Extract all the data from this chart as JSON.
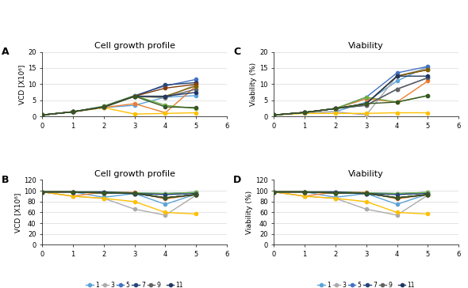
{
  "x": [
    0,
    1,
    2,
    3,
    4,
    5
  ],
  "subplot_A": {
    "title": "Cell growth profile",
    "ylabel": "VCD [X10⁶]",
    "ylim": [
      0,
      20
    ],
    "yticks": [
      0,
      5,
      10,
      15,
      20
    ],
    "series": {
      "1": [
        0.5,
        1.5,
        2.8,
        3.5,
        6.0,
        6.5
      ],
      "2": [
        0.5,
        1.5,
        2.8,
        4.0,
        1.2,
        9.5
      ],
      "3": [
        0.5,
        1.5,
        2.8,
        6.2,
        5.8,
        10.0
      ],
      "4": [
        0.5,
        1.5,
        2.8,
        0.8,
        1.0,
        1.2
      ],
      "5": [
        0.5,
        1.5,
        3.2,
        6.5,
        9.5,
        11.5
      ],
      "6": [
        0.5,
        1.5,
        3.2,
        6.5,
        3.5,
        2.5
      ],
      "7": [
        0.5,
        1.5,
        3.0,
        6.3,
        9.8,
        10.5
      ],
      "8": [
        0.5,
        1.5,
        3.0,
        6.3,
        8.8,
        10.0
      ],
      "9": [
        0.5,
        1.5,
        3.0,
        6.3,
        6.0,
        8.5
      ],
      "10": [
        0.5,
        1.5,
        3.0,
        6.3,
        6.3,
        9.5
      ],
      "11": [
        0.5,
        1.5,
        3.0,
        6.3,
        6.3,
        7.5
      ],
      "12": [
        0.5,
        1.5,
        3.0,
        6.3,
        3.0,
        2.8
      ]
    }
  },
  "subplot_B": {
    "title": "Cell growth profile",
    "ylabel": "VCD [X10⁶]",
    "ylim": [
      0,
      120
    ],
    "yticks": [
      0,
      20,
      40,
      60,
      80,
      100,
      120
    ],
    "series": {
      "1": [
        98,
        98,
        88,
        95,
        75,
        94
      ],
      "2": [
        98,
        90,
        98,
        97,
        85,
        93
      ],
      "3": [
        98,
        90,
        86,
        66,
        55,
        92
      ],
      "4": [
        98,
        90,
        86,
        80,
        60,
        57
      ],
      "5": [
        98,
        98,
        98,
        96,
        95,
        97
      ],
      "6": [
        98,
        98,
        98,
        96,
        95,
        97
      ],
      "7": [
        98,
        98,
        98,
        95,
        93,
        95
      ],
      "8": [
        98,
        98,
        96,
        95,
        87,
        93
      ],
      "9": [
        98,
        98,
        96,
        95,
        87,
        93
      ],
      "10": [
        98,
        98,
        96,
        96,
        87,
        93
      ],
      "11": [
        98,
        98,
        96,
        95,
        87,
        93
      ],
      "12": [
        98,
        98,
        96,
        96,
        87,
        93
      ]
    }
  },
  "subplot_C": {
    "title": "Viability",
    "ylabel": "Viability (%)",
    "ylim": [
      0,
      20
    ],
    "yticks": [
      0,
      5,
      10,
      15,
      20
    ],
    "series": {
      "1": [
        0.5,
        1.3,
        1.5,
        4.5,
        11.0,
        15.5
      ],
      "2": [
        0.5,
        1.3,
        2.5,
        5.5,
        4.5,
        11.0
      ],
      "3": [
        0.5,
        1.3,
        1.5,
        0.5,
        12.5,
        15.0
      ],
      "4": [
        0.5,
        1.0,
        1.0,
        1.0,
        1.2,
        1.2
      ],
      "5": [
        0.5,
        1.3,
        2.5,
        6.0,
        13.5,
        15.5
      ],
      "6": [
        0.5,
        1.3,
        2.5,
        6.0,
        4.5,
        6.5
      ],
      "7": [
        0.5,
        1.3,
        2.5,
        3.5,
        8.5,
        12.0
      ],
      "8": [
        0.5,
        1.3,
        2.5,
        4.0,
        12.5,
        14.5
      ],
      "9": [
        0.5,
        1.3,
        2.5,
        3.5,
        8.5,
        12.0
      ],
      "10": [
        0.5,
        1.3,
        2.5,
        4.0,
        12.5,
        14.5
      ],
      "11": [
        0.5,
        1.3,
        2.5,
        4.0,
        12.5,
        12.5
      ],
      "12": [
        0.5,
        1.3,
        2.5,
        4.0,
        4.5,
        6.5
      ]
    }
  },
  "subplot_D": {
    "title": "Viability",
    "ylabel": "Viability (%)",
    "ylim": [
      0,
      120
    ],
    "yticks": [
      0,
      20,
      40,
      60,
      80,
      100,
      120
    ],
    "series": {
      "1": [
        98,
        98,
        88,
        95,
        75,
        94
      ],
      "2": [
        98,
        90,
        98,
        97,
        85,
        93
      ],
      "3": [
        98,
        90,
        86,
        66,
        55,
        92
      ],
      "4": [
        98,
        90,
        86,
        80,
        60,
        57
      ],
      "5": [
        98,
        98,
        98,
        96,
        95,
        97
      ],
      "6": [
        98,
        98,
        98,
        96,
        95,
        97
      ],
      "7": [
        98,
        98,
        98,
        95,
        93,
        95
      ],
      "8": [
        98,
        98,
        96,
        95,
        87,
        93
      ],
      "9": [
        98,
        98,
        96,
        95,
        87,
        93
      ],
      "10": [
        98,
        98,
        96,
        96,
        87,
        93
      ],
      "11": [
        98,
        98,
        96,
        95,
        87,
        93
      ],
      "12": [
        98,
        98,
        96,
        96,
        87,
        93
      ]
    }
  },
  "colors": {
    "1": "#5BA3D9",
    "2": "#ED7D31",
    "3": "#ABABAB",
    "4": "#FFC000",
    "5": "#4472C4",
    "6": "#70AD47",
    "7": "#264478",
    "8": "#843C0C",
    "9": "#636363",
    "10": "#7F6000",
    "11": "#1F3864",
    "12": "#375623"
  },
  "xlim": [
    0,
    6
  ],
  "xticks": [
    0,
    1,
    2,
    3,
    4,
    5,
    6
  ],
  "background_color": "#FFFFFF",
  "grid_color": "#D9D9D9",
  "label_fontsize": 6.5,
  "title_fontsize": 8,
  "legend_fontsize": 5.5,
  "tick_fontsize": 6,
  "linewidth": 1.0,
  "markersize": 3
}
